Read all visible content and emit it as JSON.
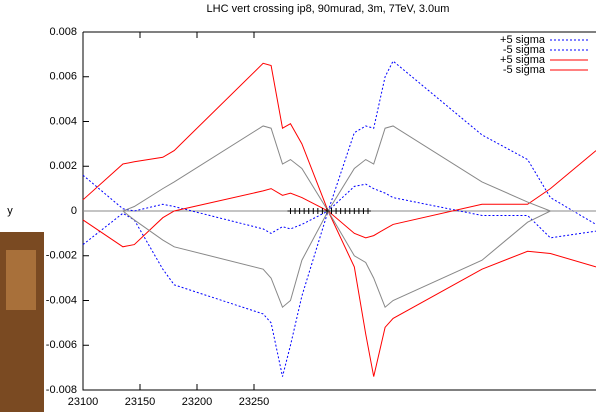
{
  "chart_data": {
    "type": "line",
    "title": "LHC vert crossing ip8, 90murad, 3m, 7TeV, 3.0um",
    "ylabel": "y",
    "x": [
      23100,
      23135,
      23145,
      23170,
      23180,
      23258,
      23265,
      23275,
      23282,
      23292,
      23315,
      23338,
      23348,
      23355,
      23365,
      23372,
      23450,
      23490,
      23510,
      23550
    ],
    "series": [
      {
        "name": "+5 sigma",
        "color": "#0000ff",
        "dash": true,
        "values": [
          -0.0015,
          -0.0001,
          -0.0004,
          -0.0026,
          -0.0033,
          -0.0046,
          -0.005,
          -0.0074,
          -0.006,
          -0.0038,
          0,
          0.0035,
          0.0038,
          0.0037,
          0.006,
          0.0067,
          0.0034,
          0.0023,
          0.0006,
          -0.0006
        ]
      },
      {
        "name": "-5 sigma",
        "color": "#0000ff",
        "dash": true,
        "values": [
          0.0016,
          0.0001,
          0,
          0.0003,
          0.0002,
          -0.0008,
          -0.001,
          -0.0007,
          -0.0008,
          -0.0006,
          0,
          0.0011,
          0.0012,
          0.001,
          0.0008,
          0.0006,
          -0.0002,
          -0.0002,
          -0.0012,
          -0.0009
        ]
      },
      {
        "name": "+5 sigma",
        "color": "#ff0000",
        "dash": false,
        "values": [
          0.0005,
          0.0021,
          0.0022,
          0.0024,
          0.0027,
          0.0066,
          0.0065,
          0.0037,
          0.0039,
          0.003,
          0,
          -0.0025,
          -0.0055,
          -0.0074,
          -0.0052,
          -0.0048,
          -0.0026,
          -0.0018,
          -0.0019,
          -0.0025
        ]
      },
      {
        "name": "-5 sigma",
        "color": "#ff0000",
        "dash": false,
        "values": [
          -0.0004,
          -0.0016,
          -0.0015,
          -0.0003,
          0,
          0.0009,
          0.001,
          0.0007,
          0.0008,
          0.0006,
          0,
          -0.001,
          -0.0012,
          -0.0011,
          -0.0008,
          -0.0006,
          0.0003,
          0.0003,
          0.001,
          0.0027
        ]
      },
      {
        "color": "#888888",
        "dash": false,
        "values": [
          0,
          0,
          0.0002,
          0.001,
          0.0013,
          0.0038,
          0.0037,
          0.0021,
          0.0023,
          0.0019,
          0,
          -0.002,
          -0.0023,
          -0.003,
          -0.0043,
          -0.004,
          -0.0022,
          -0.0005,
          0,
          0
        ]
      },
      {
        "color": "#888888",
        "dash": false,
        "values": [
          0,
          0,
          -0.0004,
          -0.0013,
          -0.0016,
          -0.0026,
          -0.003,
          -0.0043,
          -0.004,
          -0.0022,
          0,
          0.0019,
          0.0023,
          0.0021,
          0.0037,
          0.0038,
          0.0013,
          0.0004,
          0,
          0
        ]
      },
      {
        "color": "#000000",
        "marker": "+",
        "x": [
          23282,
          23286,
          23290,
          23294,
          23298,
          23302,
          23306,
          23310,
          23314,
          23318,
          23322,
          23326,
          23330,
          23334,
          23338,
          23342,
          23346,
          23350
        ],
        "values": [
          0,
          0,
          0,
          0,
          0,
          0,
          0,
          0,
          0,
          0,
          0,
          0,
          0,
          0,
          0,
          0,
          0,
          0
        ]
      }
    ],
    "xlim": [
      23100,
      23550
    ],
    "xticks": [
      23100,
      23150,
      23200,
      23250
    ],
    "ylim": [
      -0.008,
      0.008
    ],
    "yticks": [
      -0.008,
      -0.006,
      -0.004,
      -0.002,
      0,
      0.002,
      0.004,
      0.006,
      0.008
    ],
    "legend": "top-right"
  }
}
